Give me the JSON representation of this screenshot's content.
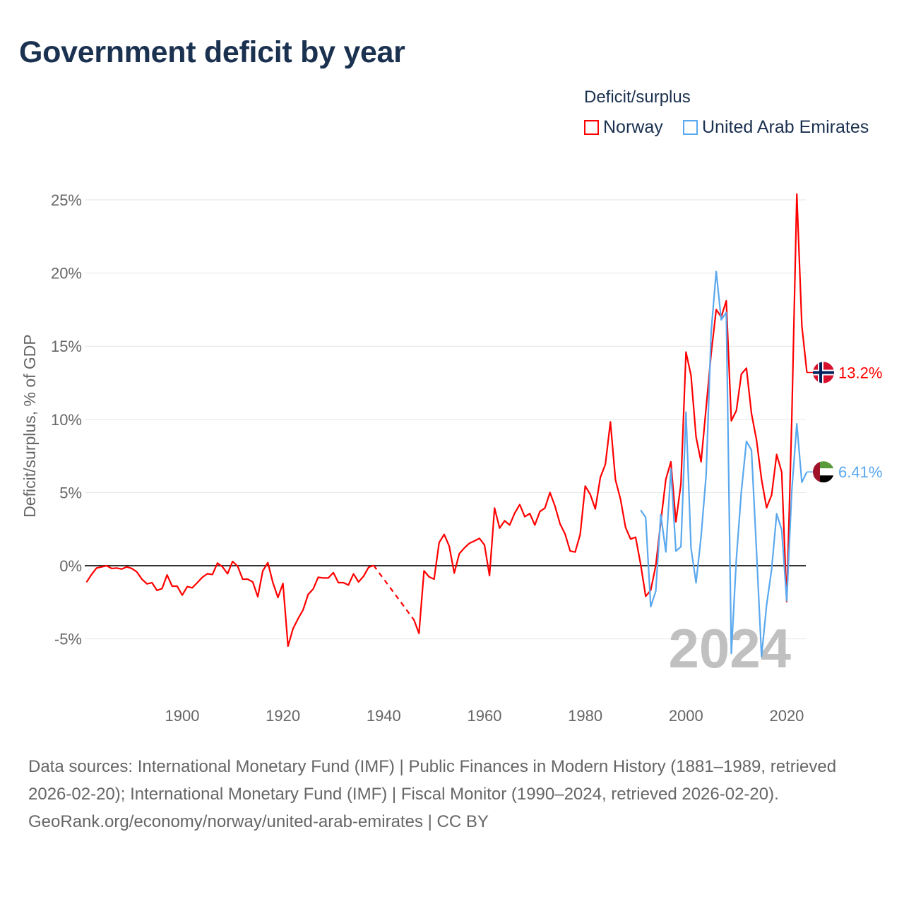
{
  "title": "Government deficit by year",
  "legend": {
    "title": "Deficit/surplus",
    "items": [
      {
        "name": "Norway",
        "color": "#ff0000"
      },
      {
        "name": "United Arab Emirates",
        "color": "#5aa8ee"
      }
    ]
  },
  "footer": {
    "sources": "Data sources: International Monetary Fund (IMF) | Public Finances in Modern History (1881–1989, retrieved 2026-02-20); International Monetary Fund (IMF) | Fiscal Monitor (1990–2024, retrieved 2026-02-20).",
    "credit": "GeoRank.org/economy/norway/united-arab-emirates | CC BY"
  },
  "chart_data": {
    "type": "line",
    "title": "Government deficit by year",
    "xlabel": "",
    "ylabel": "Deficit/surplus, % of GDP",
    "xlim": [
      1881,
      2024
    ],
    "ylim": [
      -7,
      26
    ],
    "x_ticks": [
      "1900",
      "1920",
      "1940",
      "1960",
      "1980",
      "2000",
      "2020"
    ],
    "x_tick_values": [
      1900,
      1920,
      1940,
      1960,
      1980,
      2000,
      2020
    ],
    "y_ticks": [
      "-5%",
      "0%",
      "5%",
      "10%",
      "15%",
      "20%",
      "25%"
    ],
    "y_tick_values": [
      -5,
      0,
      5,
      10,
      15,
      20,
      25
    ],
    "grid": true,
    "current_year_label": "2024",
    "series": [
      {
        "name": "Norway",
        "color": "#ff0000",
        "end_label": "13.2%",
        "start_year": 1881,
        "gap_years": [
          1939,
          1945
        ],
        "values": [
          -1.13,
          -0.6,
          -0.16,
          -0.08,
          0,
          -0.19,
          -0.16,
          -0.23,
          -0.08,
          -0.19,
          -0.43,
          -0.92,
          -1.24,
          -1.16,
          -1.69,
          -1.56,
          -0.63,
          -1.4,
          -1.4,
          -2.01,
          -1.43,
          -1.51,
          -1.16,
          -0.79,
          -0.55,
          -0.6,
          0.18,
          -0.08,
          -0.55,
          0.29,
          -0.03,
          -0.92,
          -0.92,
          -1.11,
          -2.12,
          -0.35,
          0.21,
          -1.16,
          -2.17,
          -1.21,
          -5.5,
          -4.3,
          -3.62,
          -3.01,
          -1.96,
          -1.59,
          -0.79,
          -0.84,
          -0.84,
          -0.47,
          -1.16,
          -1.16,
          -1.32,
          -0.56,
          -1.11,
          -0.72,
          -0.11,
          0.02,
          null,
          null,
          null,
          null,
          null,
          null,
          null,
          -3.7,
          -4.62,
          -0.35,
          -0.76,
          -0.92,
          1.58,
          2.14,
          1.34,
          -0.51,
          0.82,
          1.21,
          1.53,
          1.69,
          1.87,
          1.42,
          -0.68,
          3.94,
          2.57,
          3.07,
          2.78,
          3.59,
          4.18,
          3.35,
          3.56,
          2.78,
          3.7,
          3.94,
          5.0,
          4.07,
          2.86,
          2.17,
          1.01,
          0.93,
          2.14,
          5.44,
          4.87,
          3.88,
          6.03,
          6.93,
          9.83,
          5.87,
          4.55,
          2.62,
          1.82,
          1.95,
          0.1,
          -2.09,
          -1.68,
          0,
          3.0,
          5.9,
          7.1,
          3.0,
          5.6,
          14.6,
          13.0,
          8.8,
          7.1,
          10.8,
          14.5,
          17.5,
          17.0,
          18.1,
          9.9,
          10.6,
          13.1,
          13.5,
          10.4,
          8.6,
          5.9,
          3.96,
          4.84,
          7.6,
          6.4,
          -2.46,
          10.0,
          25.4,
          16.4,
          13.2
        ]
      },
      {
        "name": "United Arab Emirates",
        "color": "#5aa8ee",
        "end_label": "6.41%",
        "start_year": 1991,
        "values": [
          3.8,
          3.3,
          -2.8,
          -1.74,
          3.5,
          0.94,
          6.6,
          1.0,
          1.3,
          10.5,
          1.2,
          -1.17,
          2.0,
          6.2,
          16.0,
          20.1,
          16.8,
          17.3,
          -6.0,
          0.47,
          5.1,
          8.5,
          7.9,
          1.0,
          -6.2,
          -2.7,
          -0.25,
          3.55,
          2.46,
          -2.4,
          5.1,
          9.7,
          5.7,
          6.41
        ]
      }
    ]
  }
}
